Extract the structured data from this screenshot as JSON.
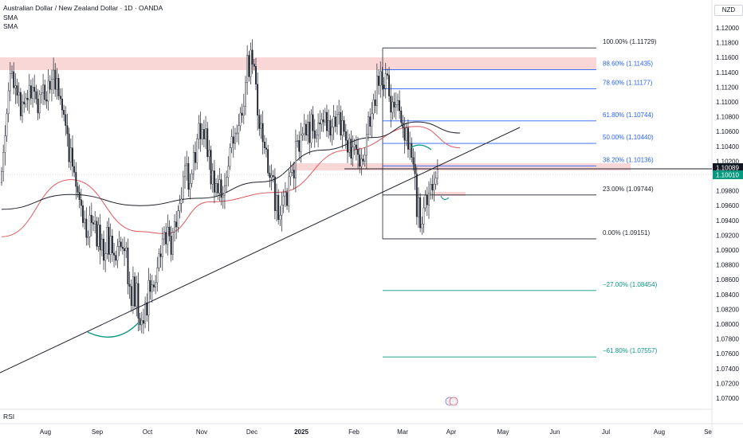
{
  "header": {
    "title": "Australian Dollar / New Zealand Dollar · 1D · OANDA",
    "indicator1": "SMA",
    "indicator2": "SMA",
    "currency": "NZD"
  },
  "rsi_label": "RSI",
  "colors": {
    "up": "#089981",
    "down": "#f23645",
    "candle": "#1e222d",
    "sma_fast": "#e0595f",
    "sma_slow": "#1e222d",
    "fib_blue": "#2962ff",
    "fib_green": "#089981",
    "zone": "#f7c9c9"
  },
  "chart_data": {
    "type": "candlestick",
    "symbol": "AUDNZD",
    "timeframe": "1D",
    "x_ticks": [
      "Aug",
      "Sep",
      "Oct",
      "Nov",
      "Dec",
      "2025",
      "Feb",
      "Mar",
      "Apr",
      "May",
      "Jun",
      "Jul",
      "Aug",
      "Se"
    ],
    "y_ticks": [
      "1.12000",
      "1.11800",
      "1.11600",
      "1.11400",
      "1.11200",
      "1.11000",
      "1.10800",
      "1.10600",
      "1.10400",
      "1.10200",
      "1.09800",
      "1.09600",
      "1.09400",
      "1.09200",
      "1.09000",
      "1.08800",
      "1.08600",
      "1.08400",
      "1.08200",
      "1.08000",
      "1.07800",
      "1.07600",
      "1.07400",
      "1.07200",
      "1.07000"
    ],
    "ylim": [
      1.0691,
      1.1222
    ],
    "price_labels": {
      "last": "1.10089",
      "prev": "1.10010"
    },
    "fib_levels": [
      {
        "label": "100.00% (1.11729)",
        "price": 1.11729,
        "color": "black"
      },
      {
        "label": "88.60% (1.11435)",
        "price": 1.11435,
        "color": "blue"
      },
      {
        "label": "78.60% (1.11177)",
        "price": 1.11177,
        "color": "blue"
      },
      {
        "label": "61.80% (1.10744)",
        "price": 1.10744,
        "color": "blue"
      },
      {
        "label": "50.00% (1.10440)",
        "price": 1.1044,
        "color": "blue"
      },
      {
        "label": "38.20% (1.10136)",
        "price": 1.10136,
        "color": "blue"
      },
      {
        "label": "23.00% (1.09744)",
        "price": 1.09744,
        "color": "black"
      },
      {
        "label": "0.00% (1.09151)",
        "price": 1.09151,
        "color": "black"
      },
      {
        "label": "−27.00% (1.08454)",
        "price": 1.08454,
        "color": "green"
      },
      {
        "label": "−61.80% (1.07557)",
        "price": 1.07557,
        "color": "green"
      }
    ],
    "closes": [
      1.1006,
      1.1032,
      1.1054,
      1.1084,
      1.1115,
      1.1138,
      1.1141,
      1.1119,
      1.1122,
      1.1109,
      1.1113,
      1.1081,
      1.11,
      1.1097,
      1.1105,
      1.1103,
      1.1122,
      1.1105,
      1.112,
      1.1114,
      1.1104,
      1.1085,
      1.111,
      1.1112,
      1.1123,
      1.1103,
      1.1101,
      1.1128,
      1.1117,
      1.1131,
      1.1143,
      1.1117,
      1.1132,
      1.1108,
      1.1104,
      1.1089,
      1.1083,
      1.1068,
      1.1057,
      1.1019,
      1.1038,
      1.1013,
      1.1005,
      1.0986,
      1.0978,
      1.0968,
      1.096,
      1.0937,
      1.0942,
      1.0917,
      1.0918,
      1.0947,
      1.0937,
      1.0935,
      1.0939,
      1.0905,
      1.0934,
      1.09,
      1.0915,
      1.0886,
      1.0895,
      1.0931,
      1.0894,
      1.0919,
      1.0896,
      1.0893,
      1.0886,
      1.0905,
      1.0911,
      1.0904,
      1.0902,
      1.0899,
      1.0903,
      1.0854,
      1.0851,
      1.0825,
      1.0864,
      1.0824,
      1.0855,
      1.0808,
      1.0799,
      1.0805,
      1.0801,
      1.0829,
      1.0812,
      1.0859,
      1.0844,
      1.0853,
      1.085,
      1.0856,
      1.0876,
      1.0895,
      1.0891,
      1.0915,
      1.0924,
      1.0908,
      1.0931,
      1.0919,
      1.0894,
      1.0924,
      1.0938,
      1.0931,
      1.0953,
      1.0963,
      1.0969,
      1.0999,
      1.1014,
      1.1017,
      1.0982,
      1.099,
      1.1003,
      1.1032,
      1.1018,
      1.105,
      1.1071,
      1.105,
      1.1063,
      1.105,
      1.1064,
      1.1026,
      1.1035,
      1.0989,
      1.1007,
      1.0978,
      1.099,
      1.0977,
      1.0995,
      1.0971,
      1.0974,
      1.0987,
      1.0998,
      1.1013,
      1.1038,
      1.1053,
      1.1044,
      1.1058,
      1.1058,
      1.1068,
      1.1085,
      1.1082,
      1.1094,
      1.1126,
      1.1163,
      1.1134,
      1.117,
      1.1151,
      1.1148,
      1.1124,
      1.1082,
      1.1064,
      1.1071,
      1.1046,
      1.1038,
      1.1036,
      1.1004,
      1.0998,
      1.1001,
      1.0999,
      1.0953,
      1.0974,
      1.0941,
      1.0947,
      1.0961,
      1.0973,
      1.0978,
      1.096,
      1.0999,
      1.1005,
      1.1008,
      1.0997,
      1.1047,
      1.1048,
      1.1033,
      1.1055,
      1.1057,
      1.107,
      1.1055,
      1.1073,
      1.1045,
      1.1083,
      1.1061,
      1.1051,
      1.1055,
      1.1072,
      1.107,
      1.1076,
      1.1073,
      1.1086,
      1.1061,
      1.1075,
      1.1055,
      1.1066,
      1.108,
      1.1067,
      1.1083,
      1.1086,
      1.1055,
      1.1075,
      1.106,
      1.1048,
      1.1032,
      1.105,
      1.1024,
      1.1039,
      1.1042,
      1.1036,
      1.1029,
      1.1013,
      1.1023,
      1.102,
      1.1028,
      1.1056,
      1.108,
      1.1067,
      1.1084,
      1.1103,
      1.1095,
      1.1135,
      1.1122,
      1.1141,
      1.1123,
      1.1118,
      1.1138,
      1.1136,
      1.1108,
      1.1086,
      1.11,
      1.1093,
      1.1096,
      1.1102,
      1.1088,
      1.1072,
      1.1065,
      1.1048,
      1.1065,
      1.1036,
      1.1044,
      1.1025,
      1.1016,
      1.1003,
      1.0945,
      1.0971,
      1.093,
      1.0935,
      1.0957,
      1.0974,
      1.0961,
      1.0977,
      1.0989,
      1.0981,
      1.0989,
      1.0997,
      1.1009
    ],
    "sma_fast_knots": [
      [
        0,
        1.0918
      ],
      [
        40,
        1.0995
      ],
      [
        80,
        1.0925
      ],
      [
        95,
        1.0922
      ],
      [
        120,
        1.0965
      ],
      [
        160,
        1.0978
      ],
      [
        200,
        1.1035
      ],
      [
        240,
        1.1067
      ],
      [
        265,
        1.1038
      ]
    ],
    "sma_slow_knots": [
      [
        0,
        1.0955
      ],
      [
        40,
        1.0975
      ],
      [
        80,
        1.096
      ],
      [
        115,
        1.097
      ],
      [
        150,
        1.0992
      ],
      [
        185,
        1.1035
      ],
      [
        215,
        1.1052
      ],
      [
        240,
        1.1073
      ],
      [
        265,
        1.1058
      ]
    ]
  }
}
